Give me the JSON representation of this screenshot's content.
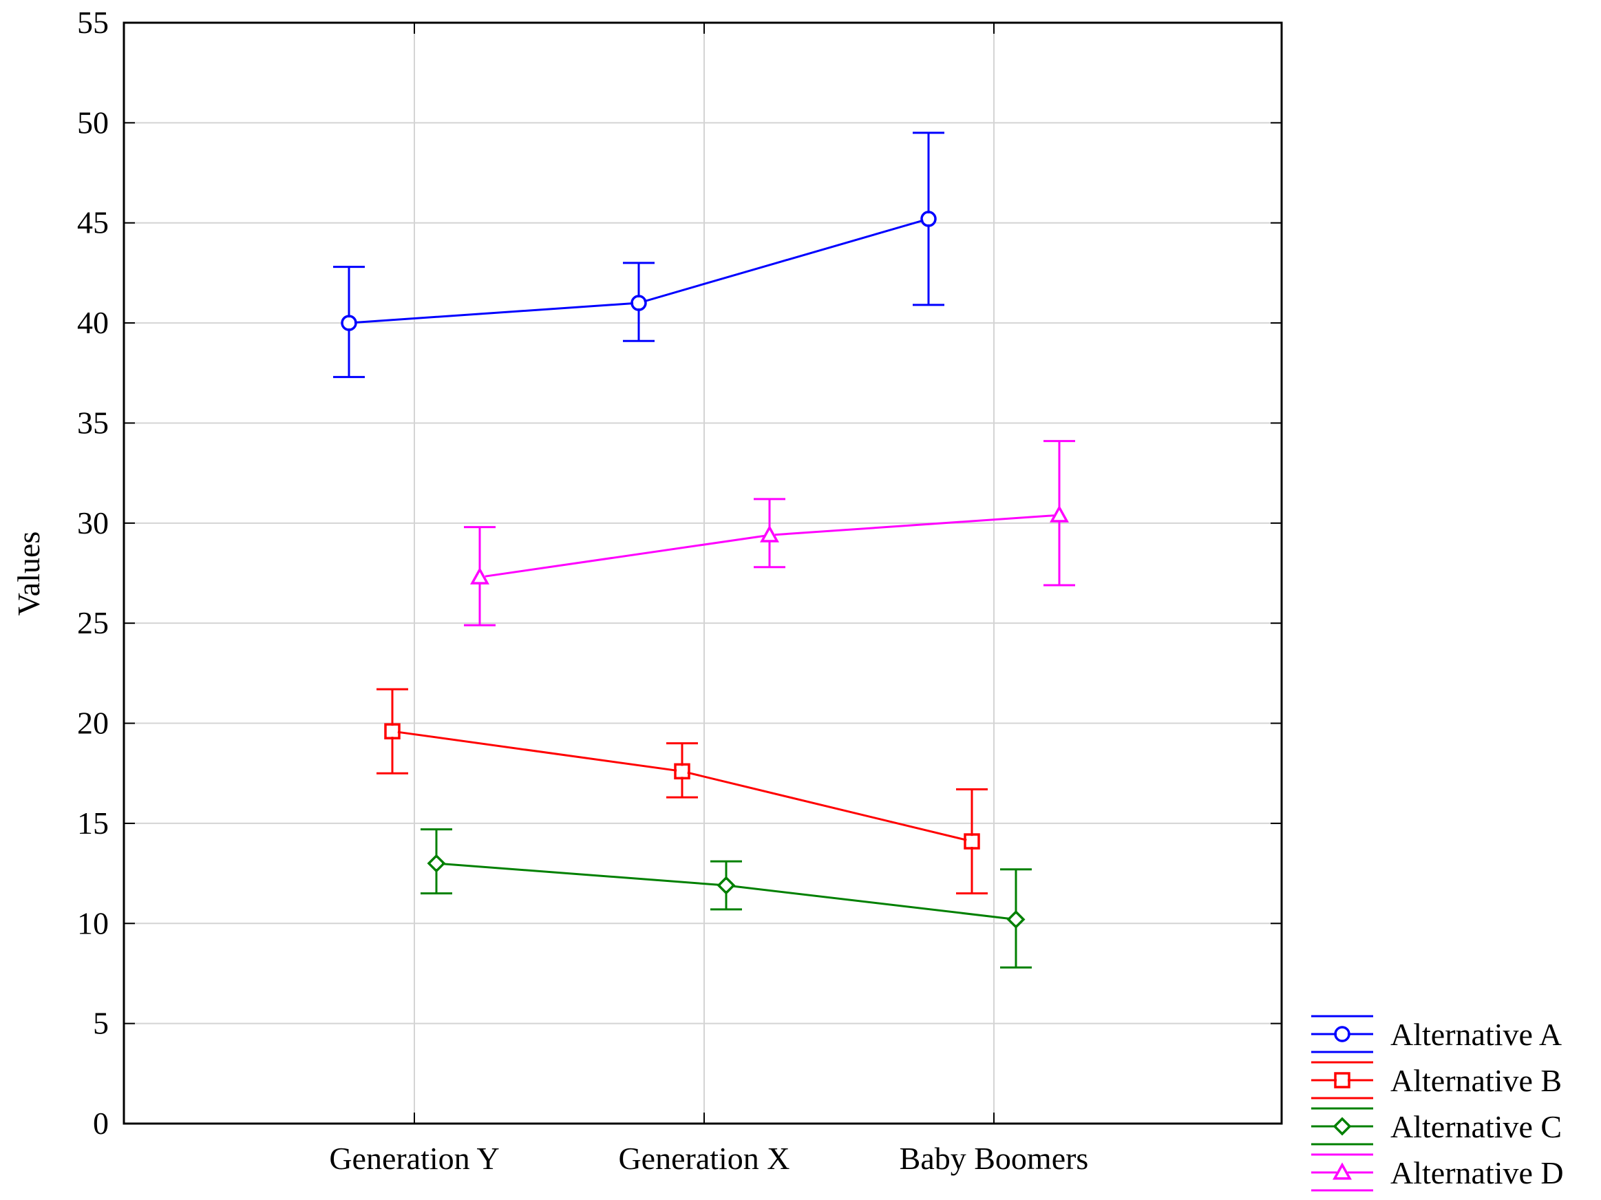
{
  "chart_data": {
    "type": "line",
    "title": "",
    "xlabel": "",
    "ylabel": "Values",
    "categories": [
      "Generation Y",
      "Generation X",
      "Baby Boomers"
    ],
    "ylim": [
      0,
      55
    ],
    "yticks": [
      "0",
      "5",
      "10",
      "15",
      "20",
      "25",
      "30",
      "35",
      "40",
      "45",
      "50",
      "55"
    ],
    "grid": true,
    "legend_position": "bottom-right outside",
    "series": [
      {
        "name": "Alternative A",
        "color": "#0000ff",
        "marker": "circle",
        "values": [
          40.0,
          41.0,
          45.2
        ],
        "lower": [
          37.3,
          39.1,
          40.9
        ],
        "upper": [
          42.8,
          43.0,
          49.5
        ]
      },
      {
        "name": "Alternative B",
        "color": "#ff0000",
        "marker": "square",
        "values": [
          19.6,
          17.6,
          14.1
        ],
        "lower": [
          17.5,
          16.3,
          11.5
        ],
        "upper": [
          21.7,
          19.0,
          16.7
        ]
      },
      {
        "name": "Alternative C",
        "color": "#008000",
        "marker": "diamond",
        "values": [
          13.0,
          11.9,
          10.2
        ],
        "lower": [
          11.5,
          10.7,
          7.8
        ],
        "upper": [
          14.7,
          13.1,
          12.7
        ]
      },
      {
        "name": "Alternative D",
        "color": "#ff00ff",
        "marker": "triangle",
        "values": [
          27.3,
          29.4,
          30.4
        ],
        "lower": [
          24.9,
          27.8,
          26.9
        ],
        "upper": [
          29.8,
          31.2,
          34.1
        ]
      }
    ]
  }
}
